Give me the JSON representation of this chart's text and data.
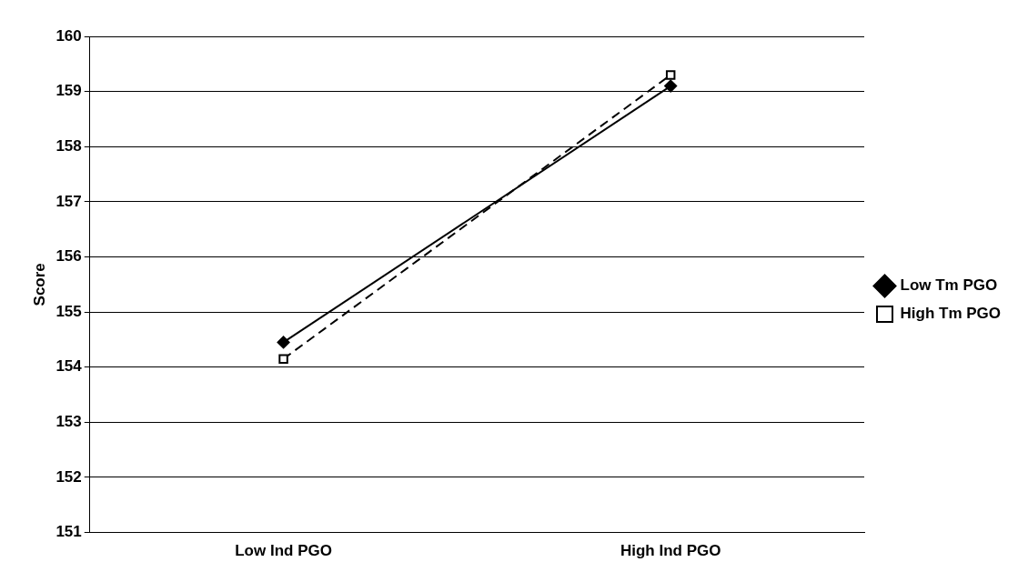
{
  "chart_data": {
    "type": "line",
    "ylabel": "Score",
    "categories": [
      "Low Ind PGO",
      "High Ind PGO"
    ],
    "series": [
      {
        "name": "Low Tm PGO",
        "color": "#000000",
        "values": [
          154.45,
          159.1
        ],
        "marker": "diamond",
        "line_style": "solid"
      },
      {
        "name": "High Tm PGO",
        "color": "#000000",
        "values": [
          154.15,
          159.3
        ],
        "marker": "square",
        "line_style": "dashed"
      }
    ],
    "ylim": [
      151,
      160
    ],
    "yticks": [
      151,
      152,
      153,
      154,
      155,
      156,
      157,
      158,
      159,
      160
    ],
    "grid": "y",
    "legend": "right"
  }
}
